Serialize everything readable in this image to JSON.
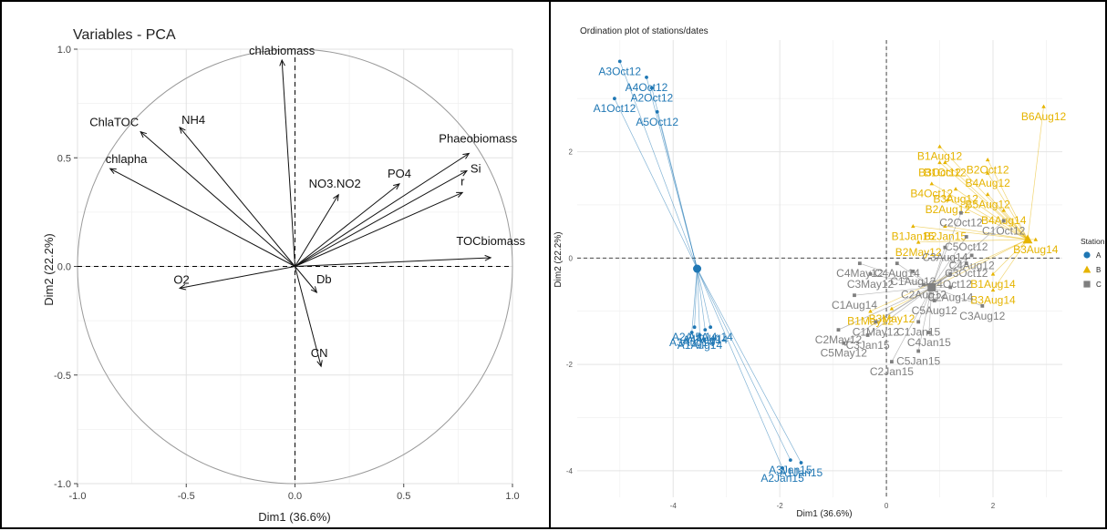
{
  "chart_data": [
    {
      "type": "scatter",
      "title": "Variables - PCA",
      "xlabel": "Dim1 (36.6%)",
      "ylabel": "Dim2 (22.2%)",
      "xlim": [
        -1.0,
        1.0
      ],
      "ylim": [
        -1.0,
        1.0
      ],
      "xticks": [
        -1.0,
        -0.5,
        0.0,
        0.5,
        1.0
      ],
      "yticks": [
        -1.0,
        -0.5,
        0.0,
        0.5,
        1.0
      ],
      "xtick_labels": [
        "-1.0",
        "-0.5",
        "0.0",
        "0.5",
        "1.0"
      ],
      "ytick_labels": [
        "-1.0",
        "-0.5",
        "0.0",
        "0.5",
        "1.0"
      ],
      "grid": true,
      "unit_circle": true,
      "arrows": [
        {
          "label": "chlabiomass",
          "x": -0.06,
          "y": 0.95
        },
        {
          "label": "ChlaTOC",
          "x": -0.71,
          "y": 0.62
        },
        {
          "label": "NH4",
          "x": -0.53,
          "y": 0.64
        },
        {
          "label": "chlapha",
          "x": -0.85,
          "y": 0.45
        },
        {
          "label": "Phaeobiomass",
          "x": 0.8,
          "y": 0.52
        },
        {
          "label": "Si",
          "x": 0.79,
          "y": 0.44
        },
        {
          "label": "r",
          "x": 0.77,
          "y": 0.34
        },
        {
          "label": "PO4",
          "x": 0.48,
          "y": 0.38
        },
        {
          "label": "NO3.NO2",
          "x": 0.2,
          "y": 0.33
        },
        {
          "label": "TOCbiomass",
          "x": 0.9,
          "y": 0.04
        },
        {
          "label": "O2",
          "x": -0.53,
          "y": -0.1
        },
        {
          "label": "Db",
          "x": 0.1,
          "y": -0.12
        },
        {
          "label": "CN",
          "x": 0.12,
          "y": -0.46
        }
      ]
    },
    {
      "type": "scatter",
      "title": "Ordination plot of stations/dates",
      "xlabel": "Dim1 (36.6%)",
      "ylabel": "Dim2 (22.2%)",
      "xlim": [
        -5.8,
        3.3
      ],
      "ylim": [
        -4.5,
        4.1
      ],
      "xticks": [
        -4,
        -2,
        0,
        2
      ],
      "yticks": [
        -4,
        -2,
        0,
        2
      ],
      "xtick_labels": [
        "-4",
        "-2",
        "0",
        "2"
      ],
      "ytick_labels": [
        "-4",
        "-2",
        "0",
        "2"
      ],
      "grid": true,
      "legend": {
        "title": "Station",
        "position": "right",
        "entries": [
          "A",
          "B",
          "C"
        ]
      },
      "colors": {
        "A": "#1f77b4",
        "B": "#e6b400",
        "C": "#7f7f7f"
      },
      "centroids": [
        {
          "group": "A",
          "x": -3.55,
          "y": -0.2
        },
        {
          "group": "B",
          "x": 2.65,
          "y": 0.35
        },
        {
          "group": "C",
          "x": 0.85,
          "y": -0.55
        }
      ],
      "series": [
        {
          "name": "A",
          "points": [
            {
              "label": "A3Oct12",
              "x": -5.0,
              "y": 3.7
            },
            {
              "label": "A4Oct12",
              "x": -4.5,
              "y": 3.4
            },
            {
              "label": "A2Oct12",
              "x": -4.4,
              "y": 3.2
            },
            {
              "label": "A1Oct12",
              "x": -5.1,
              "y": 3.0
            },
            {
              "label": "A5Oct12",
              "x": -4.3,
              "y": 2.75
            },
            {
              "label": "A2Aug14",
              "x": -3.6,
              "y": -1.3
            },
            {
              "label": "A5Aug14",
              "x": -3.3,
              "y": -1.3
            },
            {
              "label": "A3Aug14",
              "x": -3.65,
              "y": -1.4
            },
            {
              "label": "A4Aug14",
              "x": -3.4,
              "y": -1.35
            },
            {
              "label": "A1Aug14",
              "x": -3.5,
              "y": -1.45
            },
            {
              "label": "A3Jan15",
              "x": -1.8,
              "y": -3.8
            },
            {
              "label": "A2Jan15",
              "x": -1.95,
              "y": -3.95
            },
            {
              "label": "A1Jan15",
              "x": -1.6,
              "y": -3.85
            }
          ]
        },
        {
          "name": "B",
          "points": [
            {
              "label": "B6Aug12",
              "x": 2.95,
              "y": 2.85
            },
            {
              "label": "B1Aug12",
              "x": 1.0,
              "y": 2.1
            },
            {
              "label": "B1Oct12",
              "x": 1.1,
              "y": 1.8
            },
            {
              "label": "B2Oct12",
              "x": 1.9,
              "y": 1.85
            },
            {
              "label": "B3Oct12",
              "x": 1.0,
              "y": 1.8
            },
            {
              "label": "B4Aug12",
              "x": 1.9,
              "y": 1.6
            },
            {
              "label": "B4Oct12",
              "x": 0.85,
              "y": 1.4
            },
            {
              "label": "B3Aug12",
              "x": 1.3,
              "y": 1.3
            },
            {
              "label": "B2Aug12",
              "x": 1.15,
              "y": 1.1
            },
            {
              "label": "B5Aug12",
              "x": 1.9,
              "y": 1.2
            },
            {
              "label": "B4Aug14",
              "x": 2.2,
              "y": 0.9
            },
            {
              "label": "B1Jan15",
              "x": 0.5,
              "y": 0.6
            },
            {
              "label": "B2Jan15",
              "x": 1.1,
              "y": 0.6
            },
            {
              "label": "B2May12",
              "x": 0.6,
              "y": 0.3
            },
            {
              "label": "B3Aug14",
              "x": 2.8,
              "y": 0.35
            },
            {
              "label": "B1Aug14",
              "x": 2.0,
              "y": -0.3
            },
            {
              "label": "B3Aug14",
              "x": 2.0,
              "y": -0.6
            },
            {
              "label": "B1May12",
              "x": -0.3,
              "y": -1.0
            },
            {
              "label": "B3May12",
              "x": 0.1,
              "y": -0.95
            }
          ]
        },
        {
          "name": "C",
          "points": [
            {
              "label": "C2Oct12",
              "x": 1.4,
              "y": 0.85
            },
            {
              "label": "C1Oct12",
              "x": 2.2,
              "y": 0.7
            },
            {
              "label": "C3Aug14",
              "x": 1.1,
              "y": 0.2
            },
            {
              "label": "C5Oct12",
              "x": 1.5,
              "y": 0.4
            },
            {
              "label": "C4Aug12",
              "x": 1.6,
              "y": 0.05
            },
            {
              "label": "C4May12",
              "x": -0.5,
              "y": -0.1
            },
            {
              "label": "C4Aug14",
              "x": 0.2,
              "y": -0.1
            },
            {
              "label": "C3May12",
              "x": -0.3,
              "y": -0.3
            },
            {
              "label": "C1Aug12",
              "x": 0.5,
              "y": -0.25
            },
            {
              "label": "C3Oct12",
              "x": 1.5,
              "y": -0.1
            },
            {
              "label": "C4Oct12",
              "x": 1.2,
              "y": -0.3
            },
            {
              "label": "C1Aug14",
              "x": -0.6,
              "y": -0.7
            },
            {
              "label": "C2Aug12",
              "x": 0.7,
              "y": -0.5
            },
            {
              "label": "C2Aug14",
              "x": 1.2,
              "y": -0.55
            },
            {
              "label": "C5Aug12",
              "x": 0.9,
              "y": -0.8
            },
            {
              "label": "C3Aug12",
              "x": 1.8,
              "y": -0.9
            },
            {
              "label": "C1May12",
              "x": -0.2,
              "y": -1.2
            },
            {
              "label": "C2May12",
              "x": -0.9,
              "y": -1.35
            },
            {
              "label": "C1Jan15",
              "x": 0.6,
              "y": -1.2
            },
            {
              "label": "C3Jan15",
              "x": -0.35,
              "y": -1.45
            },
            {
              "label": "C4Jan15",
              "x": 0.8,
              "y": -1.4
            },
            {
              "label": "C5May12",
              "x": -0.8,
              "y": -1.6
            },
            {
              "label": "C5Jan15",
              "x": 0.6,
              "y": -1.75
            },
            {
              "label": "C2Jan15",
              "x": 0.1,
              "y": -1.95
            }
          ]
        }
      ]
    }
  ]
}
